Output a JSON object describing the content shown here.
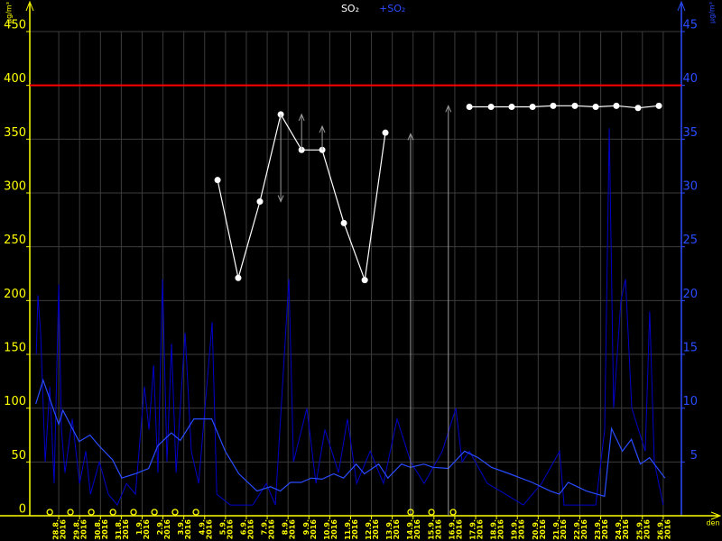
{
  "chart_data": {
    "type": "line",
    "unit_left": "µg/m³",
    "unit_right": "µg/m³",
    "x_unit": "den",
    "year": "2016",
    "xlim": [
      -1.39,
      29.87
    ],
    "xticks": [
      {
        "value": 0,
        "label": "28.8."
      },
      {
        "value": 1,
        "label": "29.8."
      },
      {
        "value": 2,
        "label": "30.8."
      },
      {
        "value": 3,
        "label": "31.8."
      },
      {
        "value": 4,
        "label": "1.9."
      },
      {
        "value": 5,
        "label": "2.9."
      },
      {
        "value": 6,
        "label": "3.9."
      },
      {
        "value": 7,
        "label": "4.9."
      },
      {
        "value": 8,
        "label": "5.9."
      },
      {
        "value": 9,
        "label": "6.9."
      },
      {
        "value": 10,
        "label": "7.9."
      },
      {
        "value": 11,
        "label": "8.9."
      },
      {
        "value": 12,
        "label": "9.9."
      },
      {
        "value": 13,
        "label": "10.9."
      },
      {
        "value": 14,
        "label": "11.9."
      },
      {
        "value": 15,
        "label": "12.9."
      },
      {
        "value": 16,
        "label": "13.9."
      },
      {
        "value": 17,
        "label": "14.9."
      },
      {
        "value": 18,
        "label": "15.9."
      },
      {
        "value": 19,
        "label": "16.9."
      },
      {
        "value": 20,
        "label": "17.9."
      },
      {
        "value": 21,
        "label": "18.9."
      },
      {
        "value": 22,
        "label": "19.9."
      },
      {
        "value": 23,
        "label": "20.9."
      },
      {
        "value": 24,
        "label": "21.9."
      },
      {
        "value": 25,
        "label": "22.9."
      },
      {
        "value": 26,
        "label": "23.9."
      },
      {
        "value": 27,
        "label": "24.9."
      },
      {
        "value": 28,
        "label": "25.9."
      },
      {
        "value": 29,
        "label": "26.9."
      }
    ],
    "ylim": [
      0,
      450
    ],
    "yticks": [
      0,
      50,
      100,
      150,
      200,
      250,
      300,
      350,
      400,
      450
    ],
    "y2lim": [
      0,
      45
    ],
    "y2ticks": [
      5,
      10,
      15,
      20,
      25,
      30,
      35,
      40,
      45
    ],
    "limit_line": {
      "value": 400,
      "color": "#ff0000"
    },
    "grid": true,
    "series": [
      {
        "axis": "y2",
        "color": "#0000c8",
        "x": [
          -1.08,
          -1.0,
          -0.87,
          -0.65,
          -0.43,
          -0.22,
          0,
          0.13,
          0.3,
          0.65,
          1.0,
          1.3,
          1.52,
          1.95,
          2.38,
          2.81,
          3.25,
          3.68,
          4.11,
          4.33,
          4.55,
          4.76,
          4.98,
          5.19,
          5.41,
          5.63,
          6.06,
          6.36,
          6.71,
          7.36,
          7.58,
          8.23,
          8.66,
          9.31,
          9.96,
          10.39,
          11.04,
          11.26,
          11.9,
          12.34,
          12.77,
          13.42,
          13.85,
          14.29,
          14.94,
          15.58,
          16.23,
          16.88,
          17.53,
          18.4,
          19.05,
          19.35,
          19.7,
          20.56,
          21.43,
          22.29,
          23.16,
          24.03,
          24.24,
          24.89,
          25.76,
          26.19,
          26.41,
          26.62,
          26.97,
          27.19,
          27.49,
          28.14,
          28.35,
          28.57,
          29.0
        ],
        "values": [
          15,
          20.5,
          17,
          5,
          12,
          3,
          21.5,
          8,
          4,
          9,
          3,
          6,
          2,
          5,
          2,
          1,
          3,
          2,
          12,
          8,
          14,
          4,
          22,
          5,
          16,
          4,
          17,
          6,
          3,
          18,
          2,
          1,
          1,
          1,
          3,
          1,
          22,
          5,
          10,
          3,
          8,
          4,
          9,
          3,
          6,
          3,
          9,
          5,
          3,
          6,
          10,
          5,
          6,
          3,
          2,
          1,
          3,
          6,
          1,
          1,
          1,
          8,
          36,
          10,
          20,
          22,
          10,
          6,
          19,
          5,
          1
        ]
      },
      {
        "name": "+SO₂",
        "axis": "y2",
        "color": "#2a4cff",
        "x": [
          -1.1,
          -0.75,
          0,
          0.2,
          0.98,
          1.5,
          1.93,
          2.58,
          3.02,
          3.66,
          4.31,
          4.75,
          5.4,
          5.83,
          6.48,
          7.34,
          7.99,
          8.64,
          9.51,
          10.16,
          10.63,
          11.11,
          11.63,
          12.11,
          12.63,
          13.19,
          13.66,
          14.27,
          14.66,
          15.35,
          15.79,
          16.44,
          16.87,
          17.52,
          17.95,
          18.69,
          19.47,
          20.12,
          20.76,
          21.63,
          22.71,
          23.58,
          24.01,
          24.44,
          25.31,
          26.18,
          26.52,
          27.04,
          27.47,
          27.9,
          28.34,
          29.08
        ],
        "values": [
          10.4,
          12.6,
          8.5,
          9.8,
          6.9,
          7.5,
          6.5,
          5.2,
          3.5,
          3.9,
          4.4,
          6.5,
          7.7,
          7.0,
          9.0,
          9.0,
          6.0,
          3.9,
          2.3,
          2.7,
          2.3,
          3.1,
          3.1,
          3.5,
          3.4,
          3.9,
          3.5,
          4.8,
          3.9,
          4.8,
          3.5,
          4.8,
          4.5,
          4.8,
          4.5,
          4.4,
          6.0,
          5.4,
          4.5,
          3.9,
          3.1,
          2.3,
          2.0,
          3.1,
          2.3,
          1.8,
          8.1,
          6.0,
          7.1,
          4.8,
          5.4,
          3.5
        ]
      },
      {
        "name": "SO₂",
        "color": "#ffffff",
        "x": [
          7.62,
          8.61,
          9.65,
          10.65,
          11.65,
          12.64,
          13.68,
          14.68,
          15.67,
          17.7,
          19.7,
          20.74,
          21.73,
          22.73,
          23.72,
          24.76,
          25.76,
          26.75,
          27.79,
          28.79
        ],
        "values": [
          312,
          221,
          292,
          373,
          340,
          340,
          272,
          219,
          356,
          null,
          380,
          380,
          380,
          380,
          381,
          381,
          380,
          381,
          379,
          381
        ]
      }
    ],
    "arrows": [
      {
        "x": 10.65,
        "from": 373,
        "to": 292
      },
      {
        "x": 11.65,
        "from": 340,
        "to": 373
      },
      {
        "x": 12.64,
        "from": 340,
        "to": 362
      },
      {
        "x": 16.88,
        "from": 0,
        "to": 355
      },
      {
        "x": 18.69,
        "from": 0,
        "to": 381
      }
    ],
    "markers": [
      -0.43,
      0.56,
      1.56,
      2.6,
      3.59,
      4.59,
      5.58,
      6.58,
      16.88,
      17.88,
      18.92
    ]
  }
}
